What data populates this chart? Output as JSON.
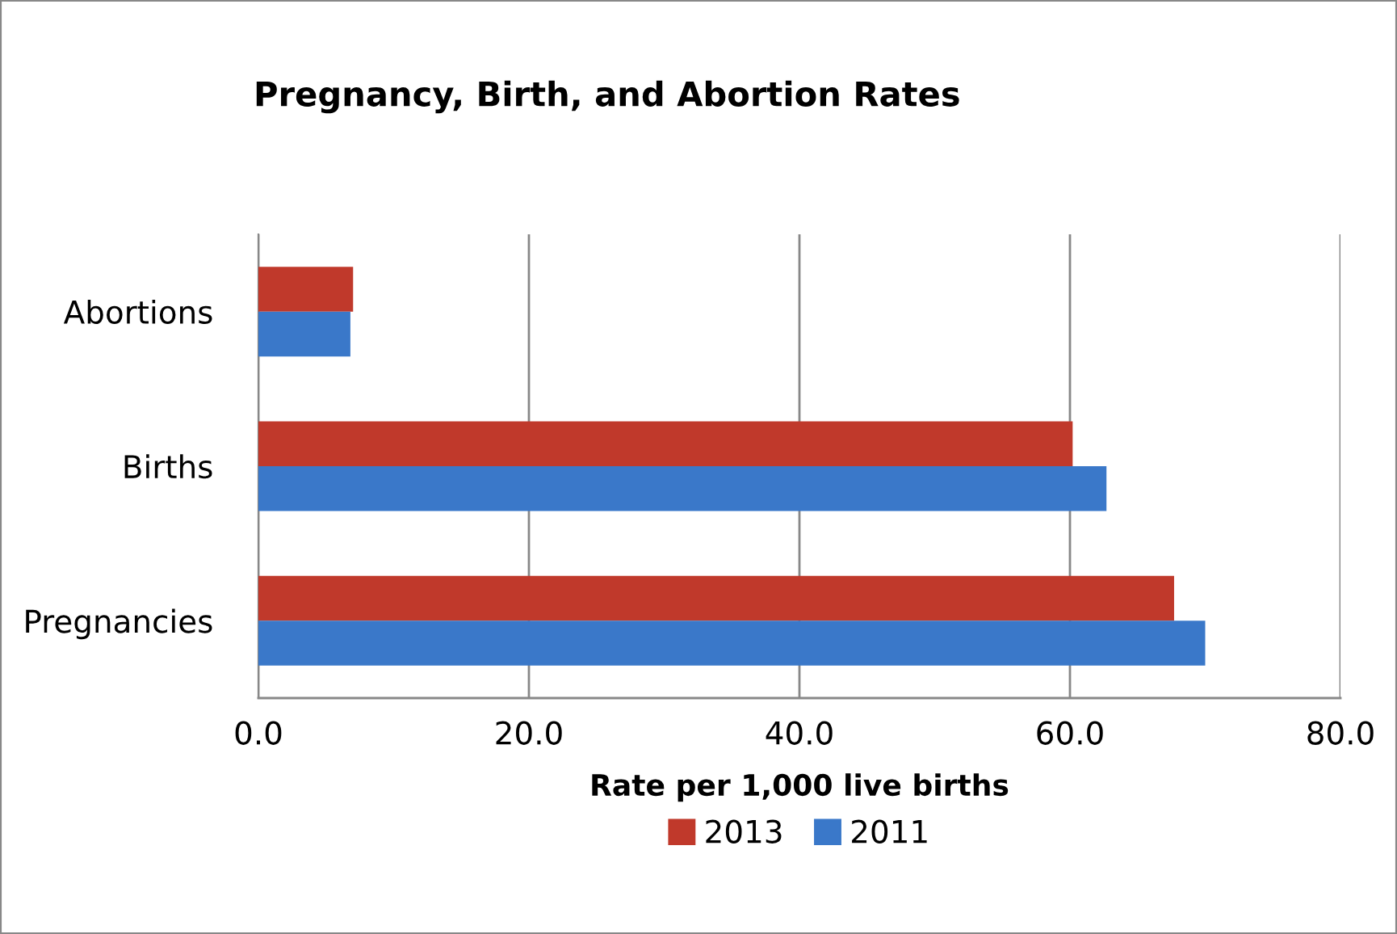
{
  "chart_data": {
    "type": "bar",
    "orientation": "horizontal",
    "title": "Pregnancy, Birth, and Abortion Rates",
    "xlabel": "Rate per 1,000 live births",
    "categories": [
      "Abortions",
      "Births",
      "Pregnancies"
    ],
    "series": [
      {
        "name": "2013",
        "color": "#c0392b",
        "values": [
          7.0,
          60.2,
          67.7
        ]
      },
      {
        "name": "2011",
        "color": "#3a78c9",
        "values": [
          6.8,
          62.7,
          70.0
        ]
      }
    ],
    "xlim": [
      0,
      80
    ],
    "xticks": [
      {
        "value": 0,
        "label": "0.0"
      },
      {
        "value": 20,
        "label": "20.0"
      },
      {
        "value": 40,
        "label": "40.0"
      },
      {
        "value": 60,
        "label": "60.0"
      },
      {
        "value": 80,
        "label": "80.0"
      }
    ],
    "grid": "x",
    "legend": "bottom"
  }
}
